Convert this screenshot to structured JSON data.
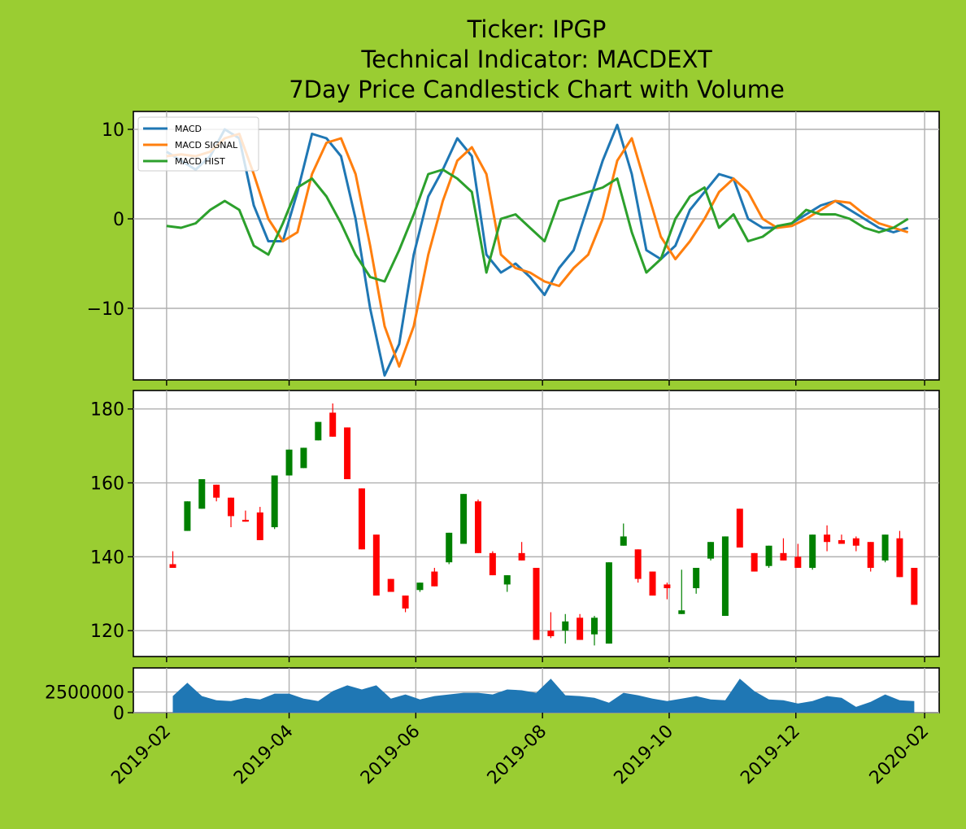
{
  "title_lines": [
    "Ticker: IPGP",
    "Technical Indicator: MACDEXT",
    "7Day Price Candlestick Chart with Volume"
  ],
  "colors": {
    "background": "#9acd32",
    "macd": "#1f77b4",
    "signal": "#ff7f0e",
    "hist": "#2ca02c",
    "up": "#008000",
    "down": "#ff0000",
    "volume": "#1f77b4"
  },
  "chart_data": [
    {
      "type": "line",
      "panel": "macd",
      "ylim": [
        -18,
        12
      ],
      "y_ticks": [
        10,
        0,
        -10
      ],
      "y_tick_labels": [
        "10",
        "0",
        "−10"
      ],
      "grid": true,
      "legend": "top-left",
      "series": [
        {
          "name": "MACD",
          "x": [
            "2019-02-01",
            "2019-02-08",
            "2019-02-15",
            "2019-02-22",
            "2019-03-01",
            "2019-03-08",
            "2019-03-15",
            "2019-03-22",
            "2019-03-29",
            "2019-04-05",
            "2019-04-12",
            "2019-04-19",
            "2019-04-26",
            "2019-05-03",
            "2019-05-10",
            "2019-05-17",
            "2019-05-24",
            "2019-05-31",
            "2019-06-07",
            "2019-06-14",
            "2019-06-21",
            "2019-06-28",
            "2019-07-05",
            "2019-07-12",
            "2019-07-19",
            "2019-07-26",
            "2019-08-02",
            "2019-08-09",
            "2019-08-16",
            "2019-08-23",
            "2019-08-30",
            "2019-09-06",
            "2019-09-13",
            "2019-09-20",
            "2019-09-27",
            "2019-10-04",
            "2019-10-11",
            "2019-10-18",
            "2019-10-25",
            "2019-11-01",
            "2019-11-08",
            "2019-11-15",
            "2019-11-22",
            "2019-11-29",
            "2019-12-06",
            "2019-12-13",
            "2019-12-20",
            "2019-12-27",
            "2020-01-03",
            "2020-01-10",
            "2020-01-17",
            "2020-01-24"
          ],
          "values": [
            7.5,
            6.5,
            5.5,
            7.0,
            10.0,
            9.0,
            1.5,
            -2.5,
            -2.5,
            3.0,
            9.5,
            9.0,
            7.0,
            0.0,
            -10.0,
            -17.5,
            -14.0,
            -4.0,
            2.5,
            5.5,
            9.0,
            7.0,
            -4.0,
            -6.0,
            -5.0,
            -6.5,
            -8.5,
            -5.5,
            -3.5,
            1.5,
            6.5,
            10.5,
            5.0,
            -3.5,
            -4.5,
            -3.0,
            1.0,
            3.0,
            5.0,
            4.5,
            0.0,
            -1.0,
            -1.0,
            -0.5,
            0.5,
            1.5,
            2.0,
            1.0,
            0.0,
            -1.0,
            -1.5,
            -1.0
          ]
        },
        {
          "name": "MACD SIGNAL",
          "x": [
            "2019-02-01",
            "2019-02-08",
            "2019-02-15",
            "2019-02-22",
            "2019-03-01",
            "2019-03-08",
            "2019-03-15",
            "2019-03-22",
            "2019-03-29",
            "2019-04-05",
            "2019-04-12",
            "2019-04-19",
            "2019-04-26",
            "2019-05-03",
            "2019-05-10",
            "2019-05-17",
            "2019-05-24",
            "2019-05-31",
            "2019-06-07",
            "2019-06-14",
            "2019-06-21",
            "2019-06-28",
            "2019-07-05",
            "2019-07-12",
            "2019-07-19",
            "2019-07-26",
            "2019-08-02",
            "2019-08-09",
            "2019-08-16",
            "2019-08-23",
            "2019-08-30",
            "2019-09-06",
            "2019-09-13",
            "2019-09-20",
            "2019-09-27",
            "2019-10-04",
            "2019-10-11",
            "2019-10-18",
            "2019-10-25",
            "2019-11-01",
            "2019-11-08",
            "2019-11-15",
            "2019-11-22",
            "2019-11-29",
            "2019-12-06",
            "2019-12-13",
            "2019-12-20",
            "2019-12-27",
            "2020-01-03",
            "2020-01-10",
            "2020-01-17",
            "2020-01-24"
          ],
          "values": [
            7.0,
            7.2,
            7.0,
            7.5,
            9.0,
            9.5,
            5.0,
            0.0,
            -2.5,
            -1.5,
            5.0,
            8.5,
            9.0,
            5.0,
            -3.0,
            -12.0,
            -16.5,
            -12.0,
            -4.0,
            2.0,
            6.5,
            8.0,
            5.0,
            -4.0,
            -5.5,
            -6.0,
            -7.0,
            -7.5,
            -5.5,
            -4.0,
            0.0,
            6.5,
            9.0,
            3.5,
            -2.0,
            -4.5,
            -2.5,
            0.0,
            3.0,
            4.5,
            3.0,
            0.0,
            -1.0,
            -0.8,
            0.0,
            1.0,
            2.0,
            1.8,
            0.5,
            -0.5,
            -1.0,
            -1.5
          ]
        },
        {
          "name": "MACD HIST",
          "x": [
            "2019-02-01",
            "2019-02-08",
            "2019-02-15",
            "2019-02-22",
            "2019-03-01",
            "2019-03-08",
            "2019-03-15",
            "2019-03-22",
            "2019-03-29",
            "2019-04-05",
            "2019-04-12",
            "2019-04-19",
            "2019-04-26",
            "2019-05-03",
            "2019-05-10",
            "2019-05-17",
            "2019-05-24",
            "2019-05-31",
            "2019-06-07",
            "2019-06-14",
            "2019-06-21",
            "2019-06-28",
            "2019-07-05",
            "2019-07-12",
            "2019-07-19",
            "2019-07-26",
            "2019-08-02",
            "2019-08-09",
            "2019-08-16",
            "2019-08-23",
            "2019-08-30",
            "2019-09-06",
            "2019-09-13",
            "2019-09-20",
            "2019-09-27",
            "2019-10-04",
            "2019-10-11",
            "2019-10-18",
            "2019-10-25",
            "2019-11-01",
            "2019-11-08",
            "2019-11-15",
            "2019-11-22",
            "2019-11-29",
            "2019-12-06",
            "2019-12-13",
            "2019-12-20",
            "2019-12-27",
            "2020-01-03",
            "2020-01-10",
            "2020-01-17",
            "2020-01-24"
          ],
          "values": [
            -0.8,
            -1.0,
            -0.5,
            1.0,
            2.0,
            1.0,
            -3.0,
            -4.0,
            -0.5,
            3.5,
            4.5,
            2.5,
            -0.5,
            -4.0,
            -6.5,
            -7.0,
            -3.5,
            0.5,
            5.0,
            5.5,
            4.5,
            3.0,
            -6.0,
            0.0,
            0.5,
            -1.0,
            -2.5,
            2.0,
            2.5,
            3.0,
            3.5,
            4.5,
            -1.5,
            -6.0,
            -4.5,
            0.0,
            2.5,
            3.5,
            -1.0,
            0.5,
            -2.5,
            -2.0,
            -0.8,
            -0.5,
            1.0,
            0.5,
            0.5,
            0.0,
            -1.0,
            -1.5,
            -1.0,
            0.0
          ]
        }
      ]
    },
    {
      "type": "candlestick",
      "panel": "price",
      "ylim": [
        113,
        185
      ],
      "y_ticks": [
        180,
        160,
        140,
        120
      ],
      "y_tick_labels": [
        "180",
        "160",
        "140",
        "120"
      ],
      "grid": true,
      "x": [
        "2019-02-04",
        "2019-02-11",
        "2019-02-18",
        "2019-02-25",
        "2019-03-04",
        "2019-03-11",
        "2019-03-18",
        "2019-03-25",
        "2019-04-01",
        "2019-04-08",
        "2019-04-15",
        "2019-04-22",
        "2019-04-29",
        "2019-05-06",
        "2019-05-13",
        "2019-05-20",
        "2019-05-27",
        "2019-06-03",
        "2019-06-10",
        "2019-06-17",
        "2019-06-24",
        "2019-07-01",
        "2019-07-08",
        "2019-07-15",
        "2019-07-22",
        "2019-07-29",
        "2019-08-05",
        "2019-08-12",
        "2019-08-19",
        "2019-08-26",
        "2019-09-02",
        "2019-09-09",
        "2019-09-16",
        "2019-09-23",
        "2019-09-30",
        "2019-10-07",
        "2019-10-14",
        "2019-10-21",
        "2019-10-28",
        "2019-11-04",
        "2019-11-11",
        "2019-11-18",
        "2019-11-25",
        "2019-12-02",
        "2019-12-09",
        "2019-12-16",
        "2019-12-23",
        "2019-12-30",
        "2020-01-06",
        "2020-01-13",
        "2020-01-20",
        "2020-01-27"
      ],
      "open": [
        138.0,
        147.0,
        153.0,
        159.5,
        156.0,
        150.0,
        152.0,
        148.0,
        162.0,
        164.0,
        171.5,
        179.0,
        175.0,
        158.5,
        146.0,
        134.0,
        129.5,
        131.0,
        136.0,
        138.5,
        143.5,
        155.0,
        141.0,
        132.5,
        141.0,
        137.0,
        120.0,
        120.0,
        123.5,
        119.0,
        116.5,
        143.0,
        142.0,
        136.0,
        132.5,
        124.5,
        131.5,
        139.5,
        124.0,
        153.0,
        141.0,
        137.5,
        141.0,
        140.0,
        137.0,
        146.0,
        144.5,
        145.0,
        144.0,
        139.0,
        145.0,
        137.0
      ],
      "close": [
        137.0,
        155.0,
        161.0,
        156.0,
        151.0,
        149.5,
        144.5,
        162.0,
        169.0,
        169.5,
        176.5,
        172.5,
        161.0,
        142.0,
        129.5,
        130.5,
        126.0,
        133.0,
        132.0,
        146.5,
        157.0,
        141.0,
        135.0,
        135.0,
        139.0,
        117.5,
        118.5,
        122.5,
        117.5,
        123.5,
        138.5,
        145.5,
        134.0,
        129.5,
        131.5,
        125.5,
        137.0,
        144.0,
        145.5,
        142.5,
        136.0,
        143.0,
        139.0,
        137.0,
        146.0,
        144.0,
        143.5,
        143.0,
        137.0,
        146.0,
        134.5,
        127.0
      ],
      "high": [
        141.5,
        155.0,
        161.0,
        159.5,
        156.0,
        152.5,
        153.5,
        162.0,
        169.0,
        169.5,
        176.5,
        181.5,
        175.0,
        158.5,
        146.0,
        134.0,
        129.5,
        133.0,
        137.0,
        146.5,
        157.0,
        155.5,
        141.5,
        135.0,
        144.0,
        137.0,
        125.0,
        124.5,
        124.5,
        124.0,
        138.5,
        149.0,
        142.0,
        136.0,
        133.0,
        136.5,
        137.0,
        144.0,
        145.5,
        153.0,
        141.0,
        143.0,
        145.0,
        143.5,
        146.0,
        148.5,
        146.0,
        145.5,
        144.0,
        146.0,
        147.0,
        137.0
      ],
      "low": [
        137.0,
        147.0,
        153.0,
        155.0,
        148.0,
        149.5,
        144.5,
        147.5,
        162.0,
        164.0,
        171.5,
        172.5,
        161.0,
        142.0,
        129.5,
        130.5,
        125.0,
        130.5,
        132.0,
        138.0,
        143.5,
        141.0,
        135.0,
        130.5,
        139.0,
        117.5,
        118.0,
        116.5,
        117.5,
        116.0,
        116.5,
        143.0,
        133.0,
        129.5,
        128.5,
        124.5,
        130.0,
        139.0,
        124.0,
        142.5,
        136.0,
        137.0,
        139.0,
        137.0,
        136.5,
        141.5,
        143.5,
        141.5,
        136.0,
        138.5,
        134.5,
        127.0
      ]
    },
    {
      "type": "area",
      "panel": "volume",
      "ylim": [
        0,
        5400000
      ],
      "y_ticks": [
        2500000,
        0
      ],
      "y_tick_labels": [
        "2500000",
        "0"
      ],
      "grid": true,
      "x_tick_labels": [
        "2019-02",
        "2019-04",
        "2019-06",
        "2019-08",
        "2019-10",
        "2019-12",
        "2020-02"
      ],
      "x_ticks": [
        "2019-02-01",
        "2019-04-01",
        "2019-06-01",
        "2019-08-01",
        "2019-10-01",
        "2019-12-01",
        "2020-02-01"
      ],
      "x": [
        "2019-02-04",
        "2019-02-11",
        "2019-02-18",
        "2019-02-25",
        "2019-03-04",
        "2019-03-11",
        "2019-03-18",
        "2019-03-25",
        "2019-04-01",
        "2019-04-08",
        "2019-04-15",
        "2019-04-22",
        "2019-04-29",
        "2019-05-06",
        "2019-05-13",
        "2019-05-20",
        "2019-05-27",
        "2019-06-03",
        "2019-06-10",
        "2019-06-17",
        "2019-06-24",
        "2019-07-01",
        "2019-07-08",
        "2019-07-15",
        "2019-07-22",
        "2019-07-29",
        "2019-08-05",
        "2019-08-12",
        "2019-08-19",
        "2019-08-26",
        "2019-09-02",
        "2019-09-09",
        "2019-09-16",
        "2019-09-23",
        "2019-09-30",
        "2019-10-07",
        "2019-10-14",
        "2019-10-21",
        "2019-10-28",
        "2019-11-04",
        "2019-11-11",
        "2019-11-18",
        "2019-11-25",
        "2019-12-02",
        "2019-12-09",
        "2019-12-16",
        "2019-12-23",
        "2019-12-30",
        "2020-01-06",
        "2020-01-13",
        "2020-01-20",
        "2020-01-27"
      ],
      "values": [
        2000000,
        3600000,
        2000000,
        1500000,
        1400000,
        1800000,
        1600000,
        2300000,
        2300000,
        1700000,
        1400000,
        2600000,
        3300000,
        2800000,
        3300000,
        1700000,
        2200000,
        1600000,
        2000000,
        2200000,
        2400000,
        2400000,
        2200000,
        2800000,
        2700000,
        2400000,
        4100000,
        2100000,
        2000000,
        1800000,
        1200000,
        2400000,
        2100000,
        1700000,
        1400000,
        1700000,
        2000000,
        1600000,
        1500000,
        4100000,
        2600000,
        1600000,
        1500000,
        1100000,
        1400000,
        2000000,
        1800000,
        700000,
        1300000,
        2200000,
        1500000,
        1400000
      ]
    }
  ]
}
